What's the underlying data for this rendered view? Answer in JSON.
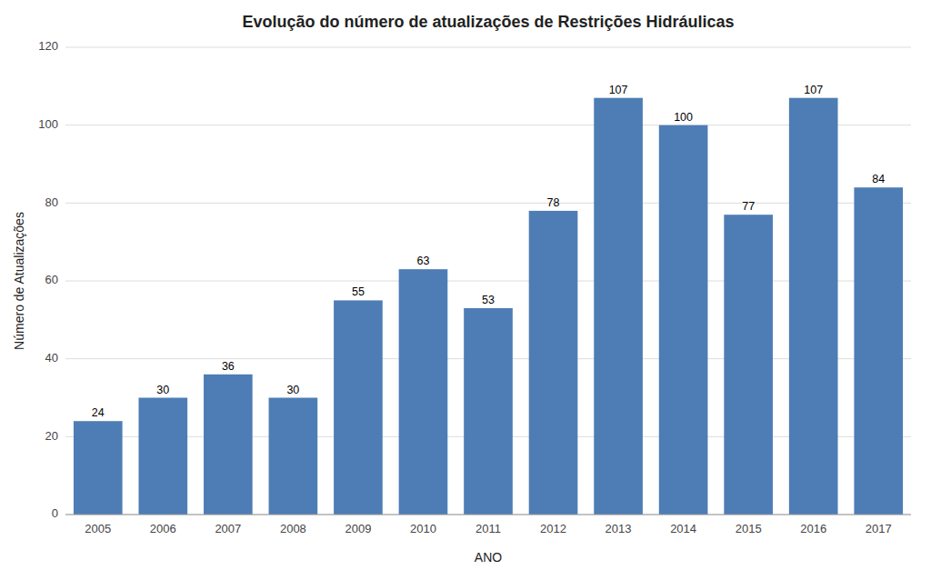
{
  "chart_data": {
    "type": "bar",
    "title": "Evolução do número de atualizações de Restrições Hidráulicas",
    "x_label": "ANO",
    "y_label": "Número de Atualizações",
    "categories": [
      "2005",
      "2006",
      "2007",
      "2008",
      "2009",
      "2010",
      "2011",
      "2012",
      "2013",
      "2014",
      "2015",
      "2016",
      "2017"
    ],
    "values": [
      24,
      30,
      36,
      30,
      55,
      63,
      53,
      78,
      107,
      100,
      77,
      107,
      84
    ],
    "color": "#4e7db5",
    "ylim": [
      0,
      120
    ],
    "yticks": [
      0,
      20,
      40,
      60,
      80,
      100,
      120
    ],
    "grid": true,
    "data_labels": true
  }
}
